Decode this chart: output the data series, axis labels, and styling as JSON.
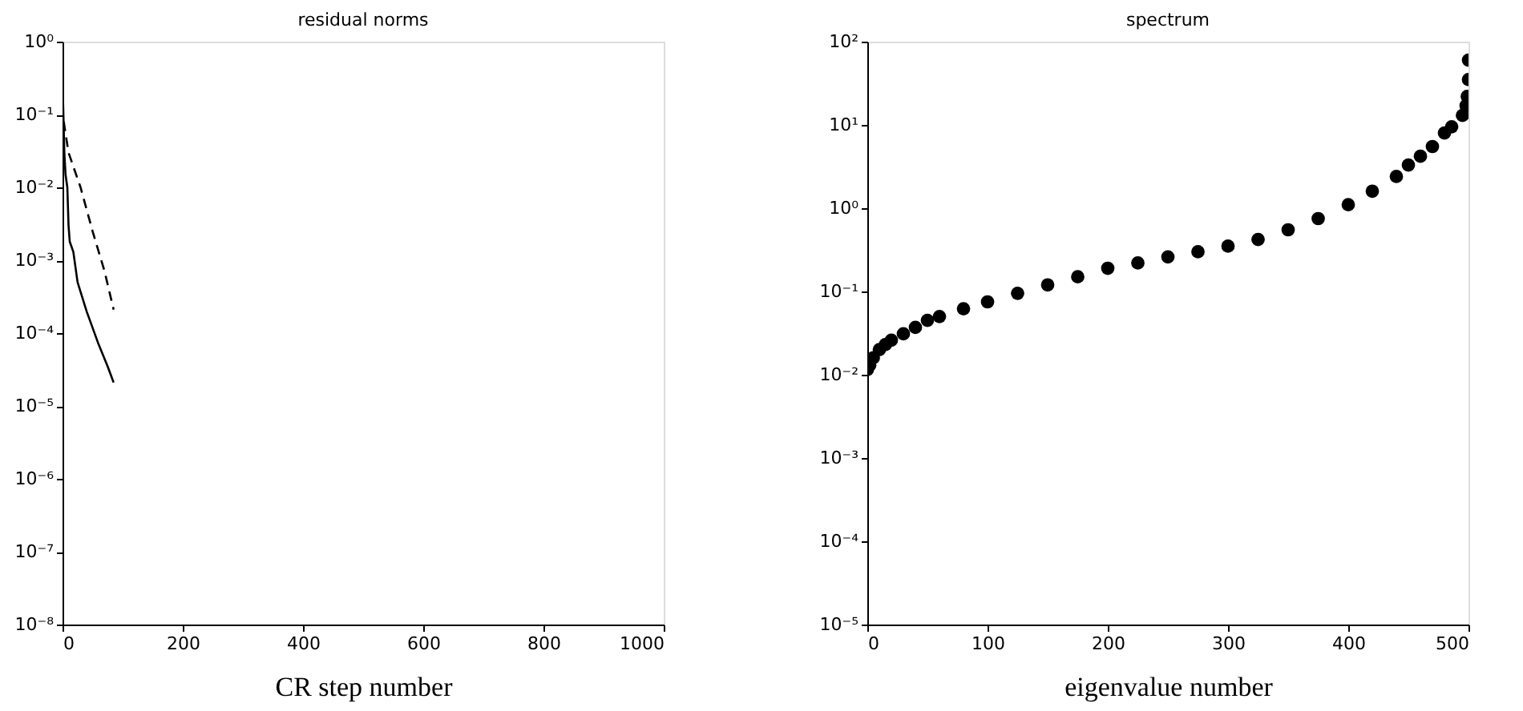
{
  "chart_data": [
    {
      "type": "line",
      "title": "residual norms",
      "xlabel": "CR step number",
      "xlim": [
        0,
        1000
      ],
      "xticks": [
        0,
        200,
        400,
        600,
        800,
        1000
      ],
      "log": "y",
      "ylim": [
        1e-08,
        1
      ],
      "yticks": [
        {
          "value": 1,
          "label": "10⁰"
        },
        {
          "value": 0.1,
          "label": "10⁻¹"
        },
        {
          "value": 0.01,
          "label": "10⁻²"
        },
        {
          "value": 0.001,
          "label": "10⁻³"
        },
        {
          "value": 0.0001,
          "label": "10⁻⁴"
        },
        {
          "value": 1e-05,
          "label": "10⁻⁵"
        },
        {
          "value": 1e-06,
          "label": "10⁻⁶"
        },
        {
          "value": 1e-07,
          "label": "10⁻⁷"
        },
        {
          "value": 1e-08,
          "label": "10⁻⁸"
        }
      ],
      "grid": false,
      "series": [
        {
          "color": "#000000",
          "line_style": "solid",
          "x": [
            0,
            3,
            5,
            8,
            10,
            12,
            18,
            25,
            40,
            60,
            75,
            85
          ],
          "values": [
            0.3,
            0.03,
            0.015,
            0.01,
            0.003,
            0.0018,
            0.0013,
            0.0005,
            0.0002,
            7e-05,
            3.5e-05,
            2.1e-05
          ]
        },
        {
          "color": "#000000",
          "line_style": "dashed",
          "x": [
            2,
            10,
            30,
            50,
            70,
            85
          ],
          "values": [
            0.08,
            0.03,
            0.01,
            0.0025,
            0.0007,
            0.00021
          ]
        }
      ]
    },
    {
      "type": "scatter",
      "title": "spectrum",
      "xlabel": "eigenvalue number",
      "xlim": [
        0,
        500
      ],
      "xticks": [
        0,
        100,
        200,
        300,
        400,
        500
      ],
      "log": "y",
      "ylim": [
        1e-05,
        100
      ],
      "yticks": [
        {
          "value": 100,
          "label": "10²"
        },
        {
          "value": 10,
          "label": "10¹"
        },
        {
          "value": 1,
          "label": "10⁰"
        },
        {
          "value": 0.1,
          "label": "10⁻¹"
        },
        {
          "value": 0.01,
          "label": "10⁻²"
        },
        {
          "value": 0.001,
          "label": "10⁻³"
        },
        {
          "value": 0.0001,
          "label": "10⁻⁴"
        },
        {
          "value": 1e-05,
          "label": "10⁻⁵"
        }
      ],
      "grid": false,
      "marker": "circle",
      "series": [
        {
          "color": "#000000",
          "x": [
            0,
            2,
            5,
            10,
            15,
            20,
            30,
            40,
            50,
            60,
            80,
            100,
            125,
            150,
            175,
            200,
            225,
            250,
            275,
            300,
            325,
            350,
            375,
            400,
            420,
            440,
            450,
            460,
            470,
            480,
            486,
            495,
            498,
            499,
            500
          ],
          "values": [
            0.0115,
            0.013,
            0.016,
            0.02,
            0.023,
            0.026,
            0.031,
            0.037,
            0.045,
            0.05,
            0.062,
            0.075,
            0.095,
            0.12,
            0.15,
            0.19,
            0.22,
            0.26,
            0.3,
            0.35,
            0.42,
            0.55,
            0.75,
            1.1,
            1.6,
            2.4,
            3.3,
            4.2,
            5.5,
            8,
            9.5,
            13,
            17,
            22,
            35
          ]
        },
        {
          "color": "#000000",
          "x": [
            500
          ],
          "values": [
            60
          ]
        }
      ]
    }
  ]
}
